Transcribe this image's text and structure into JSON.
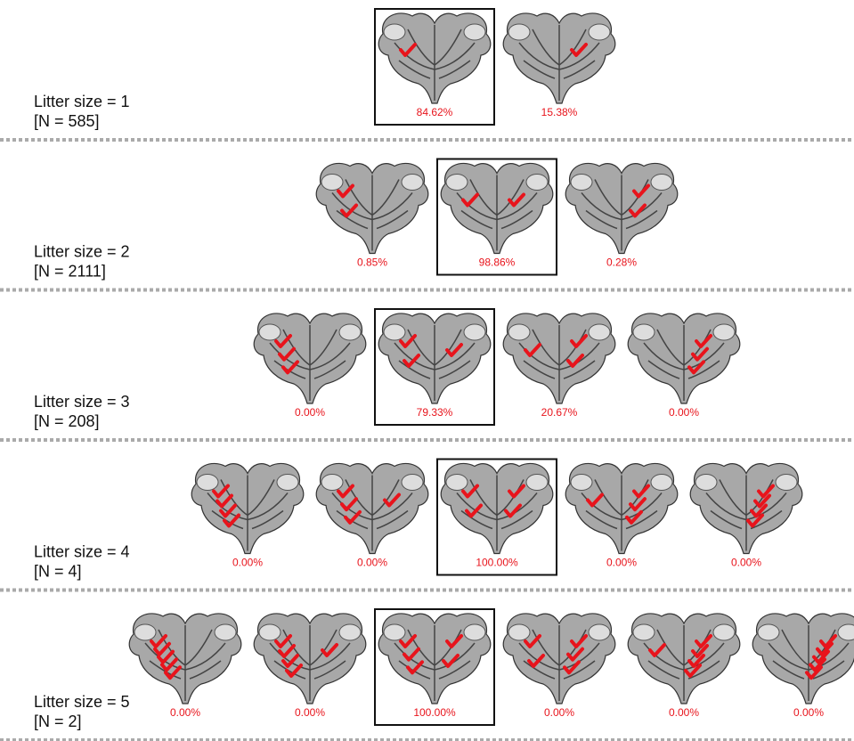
{
  "rows": [
    {
      "label": "Litter size = 1",
      "n": "[N = 585]",
      "items": [
        {
          "label": "84.62%",
          "boxed": true
        },
        {
          "label": "15.38%",
          "boxed": false
        }
      ]
    },
    {
      "label": "Litter size = 2",
      "n": "[N = 2111]",
      "items": [
        {
          "label": "0.85%",
          "boxed": false
        },
        {
          "label": "98.86%",
          "boxed": true
        },
        {
          "label": "0.28%",
          "boxed": false
        }
      ]
    },
    {
      "label": "Litter size = 3",
      "n": "[N = 208]",
      "items": [
        {
          "label": "0.00%",
          "boxed": false
        },
        {
          "label": "79.33%",
          "boxed": true
        },
        {
          "label": "20.67%",
          "boxed": false
        },
        {
          "label": "0.00%",
          "boxed": false
        }
      ]
    },
    {
      "label": "Litter size = 4",
      "n": "[N = 4]",
      "items": [
        {
          "label": "0.00%",
          "boxed": false
        },
        {
          "label": "0.00%",
          "boxed": false
        },
        {
          "label": "100.00%",
          "boxed": true
        },
        {
          "label": "0.00%",
          "boxed": false
        },
        {
          "label": "0.00%",
          "boxed": false
        }
      ]
    },
    {
      "label": "Litter size = 5",
      "n": "[N = 2]",
      "items": [
        {
          "label": "0.00%",
          "boxed": false
        },
        {
          "label": "0.00%",
          "boxed": false
        },
        {
          "label": "100.00%",
          "boxed": true
        },
        {
          "label": "0.00%",
          "boxed": false
        },
        {
          "label": "0.00%",
          "boxed": false
        },
        {
          "label": "0.00%",
          "boxed": false
        }
      ]
    }
  ]
}
